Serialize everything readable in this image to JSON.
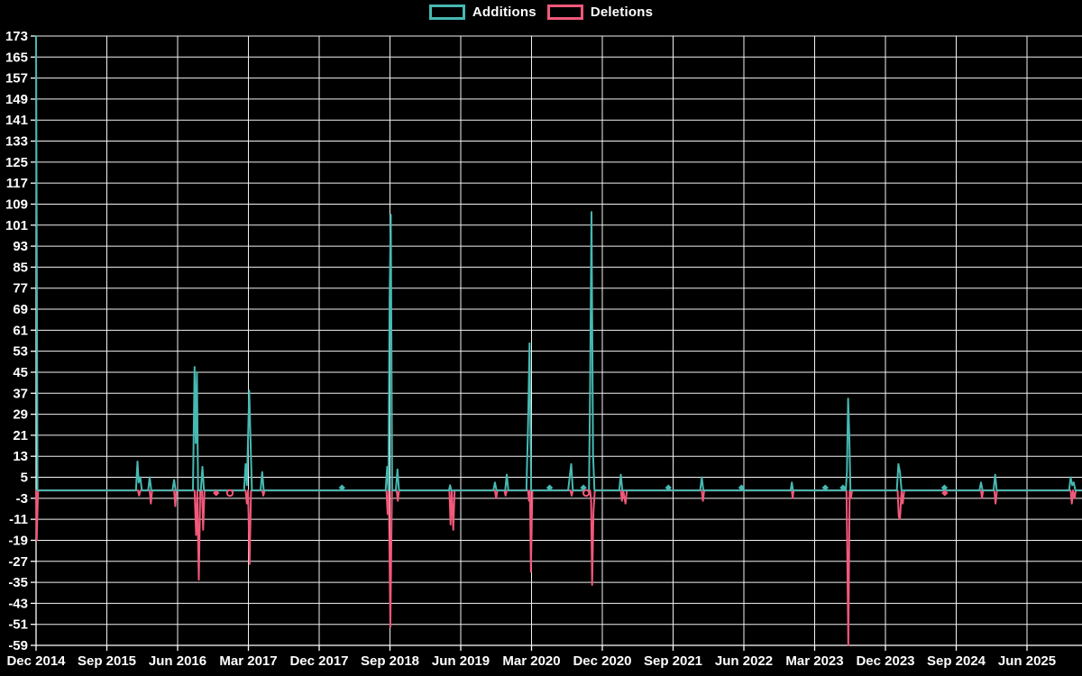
{
  "legend": {
    "items": [
      {
        "label": "Additions",
        "color": "#46b9b2"
      },
      {
        "label": "Deletions",
        "color": "#f2587a"
      }
    ]
  },
  "chart_data": {
    "type": "line",
    "title": "",
    "description": "Weekly code additions and deletions spike chart on black background",
    "background_color": "#000000",
    "grid_color": "#f2f2f2",
    "label_color": "#ffffff",
    "grid": true,
    "legend_position": "top-center",
    "x_axis": {
      "unit": "months since Dec 2014",
      "tick_interval_months": 9,
      "tick_labels": [
        "Dec 2014",
        "Sep 2015",
        "Jun 2016",
        "Mar 2017",
        "Dec 2017",
        "Sep 2018",
        "Jun 2019",
        "Mar 2020",
        "Dec 2020",
        "Sep 2021",
        "Jun 2022",
        "Mar 2023",
        "Dec 2023",
        "Sep 2024",
        "Jun 2025"
      ],
      "range_months": [
        0,
        133
      ]
    },
    "y_axis": {
      "max": 173,
      "min": -59,
      "step": 8,
      "tick_labels": [
        173,
        165,
        157,
        149,
        141,
        133,
        125,
        117,
        109,
        101,
        93,
        85,
        77,
        69,
        61,
        53,
        45,
        37,
        29,
        21,
        13,
        5,
        -3,
        -11,
        -19,
        -27,
        -35,
        -43,
        -51,
        -59
      ]
    },
    "series": [
      {
        "name": "Deletions",
        "color": "#f2587a",
        "baseline": 0,
        "points": [
          [
            0,
            0
          ],
          [
            0.08,
            -19
          ],
          [
            0.25,
            0
          ],
          [
            12.95,
            0
          ],
          [
            13.1,
            -2
          ],
          [
            13.25,
            0
          ],
          [
            14.45,
            0
          ],
          [
            14.6,
            -5
          ],
          [
            14.75,
            0
          ],
          [
            17.55,
            0
          ],
          [
            17.7,
            -6
          ],
          [
            17.85,
            0
          ],
          [
            20.15,
            0
          ],
          [
            20.35,
            -17
          ],
          [
            20.5,
            0
          ],
          [
            20.7,
            -34
          ],
          [
            20.88,
            0
          ],
          [
            21.1,
            0
          ],
          [
            21.25,
            -15
          ],
          [
            21.42,
            0
          ],
          [
            26.65,
            0
          ],
          [
            26.8,
            -5
          ],
          [
            26.95,
            0
          ],
          [
            27.15,
            -28
          ],
          [
            27.33,
            0
          ],
          [
            28.75,
            0
          ],
          [
            28.9,
            -2
          ],
          [
            29.05,
            0
          ],
          [
            44.55,
            0
          ],
          [
            44.7,
            -9
          ],
          [
            44.85,
            0
          ],
          [
            45.05,
            -52
          ],
          [
            45.25,
            0
          ],
          [
            45.85,
            0
          ],
          [
            46.0,
            -4
          ],
          [
            46.15,
            0
          ],
          [
            52.55,
            0
          ],
          [
            52.7,
            -13
          ],
          [
            52.85,
            0
          ],
          [
            53.05,
            -15
          ],
          [
            53.22,
            0
          ],
          [
            58.35,
            0
          ],
          [
            58.5,
            -3
          ],
          [
            58.65,
            0
          ],
          [
            59.55,
            0
          ],
          [
            59.7,
            -2
          ],
          [
            59.85,
            0
          ],
          [
            62.55,
            0
          ],
          [
            62.68,
            -4
          ],
          [
            62.8,
            0
          ],
          [
            62.92,
            -31
          ],
          [
            63.1,
            0
          ],
          [
            67.95,
            0
          ],
          [
            68.1,
            -2
          ],
          [
            68.25,
            0
          ],
          [
            70.45,
            0
          ],
          [
            70.58,
            -4
          ],
          [
            70.7,
            -36
          ],
          [
            70.88,
            -8
          ],
          [
            71.05,
            0
          ],
          [
            74.35,
            0
          ],
          [
            74.5,
            -4
          ],
          [
            74.65,
            0
          ],
          [
            74.95,
            -5
          ],
          [
            75.12,
            0
          ],
          [
            84.65,
            0
          ],
          [
            84.8,
            -4
          ],
          [
            84.95,
            0
          ],
          [
            96.1,
            0
          ],
          [
            96.2,
            -3
          ],
          [
            96.32,
            0
          ],
          [
            103.05,
            0
          ],
          [
            103.15,
            -24
          ],
          [
            103.28,
            -59
          ],
          [
            103.45,
            0
          ],
          [
            103.62,
            -3
          ],
          [
            103.75,
            0
          ],
          [
            109.55,
            0
          ],
          [
            109.7,
            -10
          ],
          [
            109.85,
            -11
          ],
          [
            110.05,
            0
          ],
          [
            110.2,
            -5
          ],
          [
            110.38,
            0
          ],
          [
            120.15,
            0
          ],
          [
            120.28,
            -3
          ],
          [
            120.42,
            0
          ],
          [
            121.85,
            0
          ],
          [
            122.0,
            -5
          ],
          [
            122.18,
            0
          ],
          [
            131.55,
            0
          ],
          [
            131.7,
            -5
          ],
          [
            131.85,
            0
          ],
          [
            132.05,
            -3
          ],
          [
            132.2,
            0
          ],
          [
            133,
            0
          ]
        ]
      },
      {
        "name": "Additions",
        "color": "#46b9b2",
        "baseline": 0,
        "points": [
          [
            0,
            173
          ],
          [
            0.18,
            0
          ],
          [
            12.7,
            0
          ],
          [
            12.9,
            11
          ],
          [
            13.05,
            3
          ],
          [
            13.25,
            5
          ],
          [
            13.45,
            0
          ],
          [
            14.25,
            0
          ],
          [
            14.45,
            5
          ],
          [
            14.65,
            0
          ],
          [
            17.35,
            0
          ],
          [
            17.55,
            4
          ],
          [
            17.75,
            0
          ],
          [
            19.95,
            0
          ],
          [
            20.15,
            47
          ],
          [
            20.3,
            18
          ],
          [
            20.45,
            45
          ],
          [
            20.6,
            0
          ],
          [
            20.95,
            0
          ],
          [
            21.15,
            9
          ],
          [
            21.35,
            0
          ],
          [
            26.45,
            0
          ],
          [
            26.65,
            10
          ],
          [
            26.8,
            2
          ],
          [
            27.1,
            38
          ],
          [
            27.25,
            21
          ],
          [
            27.45,
            0
          ],
          [
            28.55,
            0
          ],
          [
            28.75,
            7
          ],
          [
            28.95,
            0
          ],
          [
            44.45,
            0
          ],
          [
            44.65,
            9
          ],
          [
            44.8,
            0
          ],
          [
            44.95,
            73
          ],
          [
            45.1,
            105
          ],
          [
            45.28,
            0
          ],
          [
            45.75,
            0
          ],
          [
            45.95,
            8
          ],
          [
            46.15,
            0
          ],
          [
            52.5,
            0
          ],
          [
            52.65,
            2
          ],
          [
            52.8,
            0
          ],
          [
            58.15,
            0
          ],
          [
            58.35,
            3
          ],
          [
            58.55,
            0
          ],
          [
            59.65,
            0
          ],
          [
            59.85,
            6
          ],
          [
            60.05,
            0
          ],
          [
            62.35,
            0
          ],
          [
            62.55,
            24
          ],
          [
            62.75,
            56
          ],
          [
            62.95,
            0
          ],
          [
            67.65,
            0
          ],
          [
            67.85,
            5
          ],
          [
            68.05,
            10
          ],
          [
            68.25,
            0
          ],
          [
            70.3,
            0
          ],
          [
            70.45,
            40
          ],
          [
            70.62,
            106
          ],
          [
            70.82,
            14
          ],
          [
            71.0,
            0
          ],
          [
            74.15,
            0
          ],
          [
            74.35,
            6
          ],
          [
            74.55,
            0
          ],
          [
            84.45,
            0
          ],
          [
            84.65,
            5
          ],
          [
            84.85,
            0
          ],
          [
            95.95,
            0
          ],
          [
            96.1,
            3
          ],
          [
            96.25,
            0
          ],
          [
            102.95,
            0
          ],
          [
            103.1,
            7
          ],
          [
            103.25,
            35
          ],
          [
            103.4,
            21
          ],
          [
            103.55,
            0
          ],
          [
            109.45,
            0
          ],
          [
            109.65,
            10
          ],
          [
            109.85,
            7
          ],
          [
            110.05,
            0
          ],
          [
            119.95,
            0
          ],
          [
            120.15,
            3
          ],
          [
            120.35,
            0
          ],
          [
            121.75,
            0
          ],
          [
            121.95,
            6
          ],
          [
            122.15,
            0
          ],
          [
            131.35,
            0
          ],
          [
            131.55,
            5
          ],
          [
            131.75,
            2
          ],
          [
            131.95,
            3
          ],
          [
            132.15,
            0
          ],
          [
            133,
            0
          ]
        ]
      }
    ],
    "markers": [
      {
        "m": 22.9,
        "v": -1,
        "series": "Deletions",
        "shape": "diamond"
      },
      {
        "m": 24.65,
        "v": -1,
        "series": "Deletions",
        "shape": "circle"
      },
      {
        "m": 38.9,
        "v": 1,
        "series": "Additions",
        "shape": "diamond"
      },
      {
        "m": 65.3,
        "v": 1,
        "series": "Additions",
        "shape": "diamond"
      },
      {
        "m": 69.6,
        "v": 1,
        "series": "Additions",
        "shape": "diamond"
      },
      {
        "m": 69.95,
        "v": -1,
        "series": "Deletions",
        "shape": "circle"
      },
      {
        "m": 80.4,
        "v": 1,
        "series": "Additions",
        "shape": "diamond"
      },
      {
        "m": 89.7,
        "v": 1,
        "series": "Additions",
        "shape": "diamond"
      },
      {
        "m": 100.35,
        "v": 1,
        "series": "Additions",
        "shape": "diamond"
      },
      {
        "m": 102.6,
        "v": 1,
        "series": "Additions",
        "shape": "diamond"
      },
      {
        "m": 115.5,
        "v": 1,
        "series": "Additions",
        "shape": "diamond"
      },
      {
        "m": 115.55,
        "v": -1,
        "series": "Deletions",
        "shape": "diamond"
      }
    ]
  }
}
